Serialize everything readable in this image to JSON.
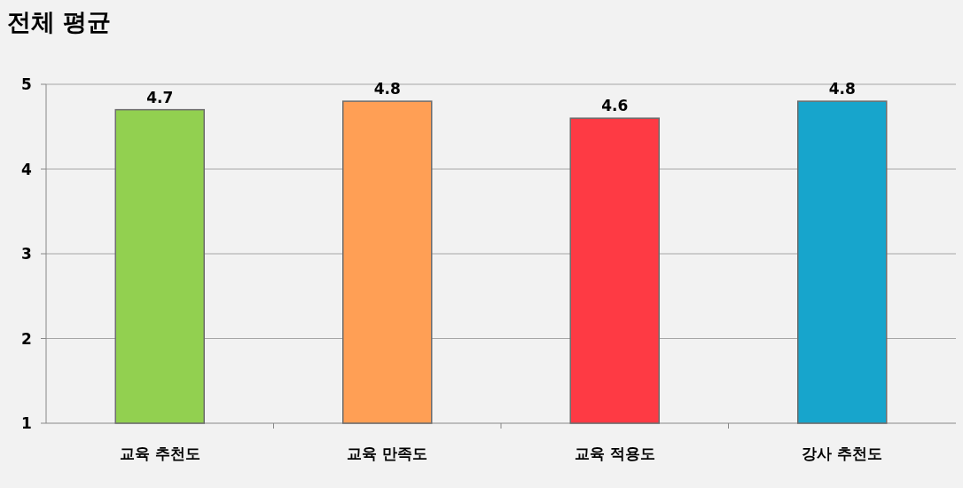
{
  "chart_data": {
    "type": "bar",
    "title": "전체 평균",
    "categories": [
      "교육 추천도",
      "교육 만족도",
      "교육 적용도",
      "강사 추천도"
    ],
    "values": [
      4.7,
      4.8,
      4.6,
      4.8
    ],
    "colors": [
      "#92d050",
      "#ff9f55",
      "#fe3a44",
      "#17a5cc"
    ],
    "ylim": [
      1,
      5
    ],
    "yticks": [
      1,
      2,
      3,
      4,
      5
    ],
    "grid": "y",
    "data_labels": true
  }
}
